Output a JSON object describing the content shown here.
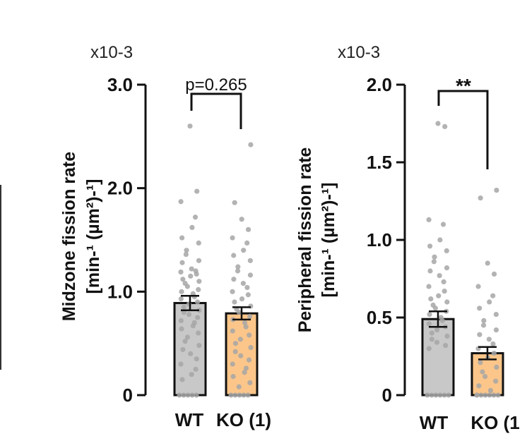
{
  "chart_data": [
    {
      "type": "bar",
      "multiplier": "x10-3",
      "ylabel_line1": "Midzone fission rate",
      "ylabel_line2": "[min-¹ (µm²)-¹]",
      "ylim": [
        0,
        3.0
      ],
      "yticks": [
        {
          "value": 0,
          "label": "0"
        },
        {
          "value": 1.0,
          "label": "1.0"
        },
        {
          "value": 2.0,
          "label": "2.0"
        },
        {
          "value": 3.0,
          "label": "3.0"
        }
      ],
      "categories": [
        "WT",
        "KO (1)"
      ],
      "values": [
        0.89,
        0.79
      ],
      "errors": [
        0.07,
        0.06
      ],
      "colors": [
        "#c8c8c8",
        "#fcc68a"
      ],
      "significance": "p=0.265",
      "points": [
        [
          2.6,
          1.97,
          1.87,
          1.72,
          1.62,
          1.52,
          1.47,
          1.4,
          1.36,
          1.3,
          1.28,
          1.22,
          1.2,
          1.19,
          1.17,
          1.15,
          1.12,
          1.1,
          1.08,
          1.05,
          1.02,
          1.0,
          0.98,
          0.95,
          0.93,
          0.9,
          0.88,
          0.85,
          0.82,
          0.8,
          0.78,
          0.75,
          0.72,
          0.7,
          0.67,
          0.64,
          0.6,
          0.56,
          0.52,
          0.48,
          0.44,
          0.4,
          0.35,
          0.3,
          0.25,
          0.2,
          0.15,
          0,
          0,
          0,
          0,
          0
        ],
        [
          2.42,
          1.86,
          1.7,
          1.6,
          1.52,
          1.47,
          1.4,
          1.35,
          1.3,
          1.24,
          1.2,
          1.16,
          1.12,
          1.08,
          1.04,
          1.0,
          0.97,
          0.93,
          0.9,
          0.86,
          0.83,
          0.8,
          0.76,
          0.73,
          0.7,
          0.66,
          0.62,
          0.58,
          0.54,
          0.5,
          0.46,
          0.42,
          0.38,
          0.34,
          0.3,
          0.26,
          0.22,
          0.18,
          0.12,
          0.08,
          0,
          0,
          0,
          0,
          0
        ]
      ]
    },
    {
      "type": "bar",
      "multiplier": "x10-3",
      "ylabel_line1": "Peripheral fission rate",
      "ylabel_line2": "[min-¹ (µm²)-¹]",
      "ylim": [
        0,
        2.0
      ],
      "yticks": [
        {
          "value": 0,
          "label": "0"
        },
        {
          "value": 0.5,
          "label": "0.5"
        },
        {
          "value": 1.0,
          "label": "1.0"
        },
        {
          "value": 1.5,
          "label": "1.5"
        },
        {
          "value": 2.0,
          "label": "2.0"
        }
      ],
      "categories": [
        "WT",
        "KO (1"
      ],
      "values": [
        0.49,
        0.27
      ],
      "errors": [
        0.05,
        0.04
      ],
      "colors": [
        "#c8c8c8",
        "#fcc68a"
      ],
      "significance": "**",
      "points": [
        [
          1.75,
          1.73,
          1.13,
          1.1,
          1.0,
          0.96,
          0.93,
          0.89,
          0.86,
          0.82,
          0.8,
          0.77,
          0.73,
          0.7,
          0.67,
          0.64,
          0.62,
          0.6,
          0.58,
          0.56,
          0.54,
          0.52,
          0.5,
          0.48,
          0.46,
          0.44,
          0.42,
          0.4,
          0.38,
          0.36,
          0.34,
          0.32,
          0.3,
          0,
          0,
          0,
          0,
          0,
          0
        ],
        [
          1.32,
          1.27,
          0.85,
          0.78,
          0.7,
          0.64,
          0.6,
          0.56,
          0.52,
          0.48,
          0.45,
          0.42,
          0.39,
          0.36,
          0.33,
          0.3,
          0.27,
          0.24,
          0.21,
          0.18,
          0.15,
          0.12,
          0.09,
          0.06,
          0.03,
          0,
          0,
          0,
          0,
          0,
          0,
          0
        ]
      ]
    }
  ]
}
